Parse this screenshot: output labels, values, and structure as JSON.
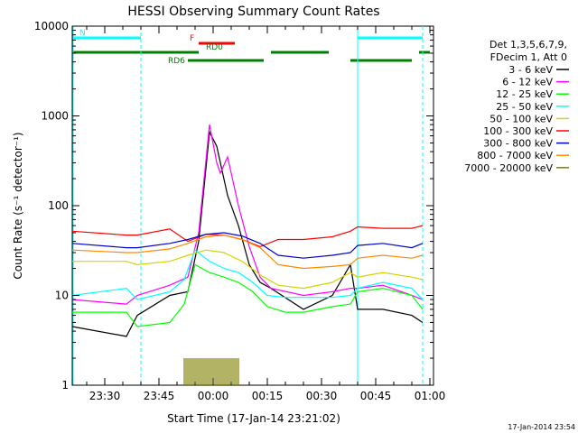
{
  "chart_data": {
    "type": "line",
    "title": "HESSI Observing Summary Count Rates",
    "xlabel": "Start Time (17-Jan-14 23:21:02)",
    "ylabel": "Count Rate (s⁻¹ detector⁻¹)",
    "y_scale": "log",
    "ylim": [
      1,
      10000
    ],
    "xlim": [
      "23:21",
      "01:01"
    ],
    "x_tick_labels": [
      "23:30",
      "23:45",
      "00:00",
      "00:15",
      "00:30",
      "00:45",
      "01:00"
    ],
    "y_tick_labels": [
      "1",
      "10",
      "100",
      "1000",
      "10000"
    ],
    "grid": false,
    "legend_position": "right",
    "legend_header": [
      "Det 1,3,5,6,7,9,",
      "FDecim 1, Att 0"
    ],
    "date_stamp": "17-Jan-2014 23:54",
    "series": [
      {
        "name": "3 - 6 keV",
        "color": "#000000",
        "x": [
          "23:21",
          "23:36",
          "23:39",
          "23:48",
          "23:53",
          "23:56",
          "23:59",
          "00:01",
          "00:04",
          "00:07",
          "00:10",
          "00:13",
          "00:16",
          "00:25",
          "00:33",
          "00:38",
          "00:40",
          "00:47",
          "00:55",
          "00:58"
        ],
        "values": [
          4.5,
          3.5,
          6,
          10,
          11,
          40,
          660,
          460,
          130,
          60,
          22,
          14,
          12,
          7,
          10,
          22,
          7,
          7,
          6,
          5
        ]
      },
      {
        "name": "6 - 12 keV",
        "color": "#ff00ff",
        "x": [
          "23:21",
          "23:36",
          "23:39",
          "23:48",
          "23:53",
          "23:56",
          "23:59",
          "00:01",
          "00:02",
          "00:04",
          "00:07",
          "00:10",
          "00:13",
          "00:16",
          "00:25",
          "00:33",
          "00:38",
          "00:40",
          "00:47",
          "00:55",
          "00:58"
        ],
        "values": [
          9,
          8,
          10,
          13,
          16,
          50,
          800,
          300,
          230,
          350,
          100,
          35,
          16,
          12,
          10,
          11,
          12,
          12,
          13,
          10,
          9
        ]
      },
      {
        "name": "12 - 25 keV",
        "color": "#00ff00",
        "x": [
          "23:21",
          "23:36",
          "23:39",
          "23:48",
          "23:52",
          "23:55",
          "23:59",
          "00:03",
          "00:07",
          "00:11",
          "00:15",
          "00:20",
          "00:25",
          "00:33",
          "00:38",
          "00:40",
          "00:47",
          "00:55",
          "00:58"
        ],
        "values": [
          6.5,
          6.5,
          4.5,
          5,
          8,
          22,
          18,
          16,
          14,
          11,
          7.5,
          6.5,
          6.5,
          7.5,
          8,
          11,
          12,
          10,
          7
        ]
      },
      {
        "name": "25 - 50 keV",
        "color": "#00ffff",
        "x": [
          "23:21",
          "23:36",
          "23:39",
          "23:48",
          "23:52",
          "23:55",
          "23:59",
          "00:03",
          "00:07",
          "00:11",
          "00:15",
          "00:20",
          "00:25",
          "00:33",
          "00:38",
          "00:40",
          "00:47",
          "00:55",
          "00:58"
        ],
        "values": [
          10,
          12,
          9,
          11,
          15,
          32,
          24,
          20,
          18,
          14,
          10,
          9.5,
          9.5,
          9.5,
          10,
          12,
          14,
          12,
          9
        ]
      },
      {
        "name": "50 - 100 keV",
        "color": "#d4d400",
        "x": [
          "23:21",
          "23:36",
          "23:39",
          "23:48",
          "23:53",
          "23:58",
          "00:03",
          "00:08",
          "00:13",
          "00:18",
          "00:25",
          "00:33",
          "00:38",
          "00:40",
          "00:47",
          "00:55",
          "00:58"
        ],
        "values": [
          24,
          24,
          22,
          24,
          28,
          32,
          30,
          24,
          17,
          13,
          12,
          14,
          18,
          16,
          18,
          16,
          15
        ]
      },
      {
        "name": "100 - 300 keV",
        "color": "#ff0000",
        "x": [
          "23:21",
          "23:36",
          "23:39",
          "23:48",
          "23:53",
          "23:58",
          "00:03",
          "00:08",
          "00:13",
          "00:18",
          "00:25",
          "00:33",
          "00:38",
          "00:40",
          "00:47",
          "00:55",
          "00:58"
        ],
        "values": [
          52,
          47,
          47,
          55,
          40,
          48,
          47,
          42,
          35,
          42,
          42,
          45,
          52,
          58,
          56,
          56,
          60
        ]
      },
      {
        "name": "300 - 800 keV",
        "color": "#0000cc",
        "x": [
          "23:21",
          "23:36",
          "23:39",
          "23:48",
          "23:53",
          "23:58",
          "00:03",
          "00:08",
          "00:13",
          "00:18",
          "00:25",
          "00:33",
          "00:38",
          "00:40",
          "00:47",
          "00:55",
          "00:58"
        ],
        "values": [
          38,
          34,
          34,
          38,
          42,
          48,
          50,
          46,
          38,
          28,
          26,
          28,
          30,
          36,
          38,
          34,
          38
        ]
      },
      {
        "name": "800 - 7000 keV",
        "color": "#ff8800",
        "x": [
          "23:21",
          "23:36",
          "23:39",
          "23:48",
          "23:53",
          "23:58",
          "00:03",
          "00:08",
          "00:13",
          "00:18",
          "00:25",
          "00:33",
          "00:38",
          "00:40",
          "00:47",
          "00:55",
          "00:58"
        ],
        "values": [
          32,
          30,
          30,
          33,
          38,
          45,
          47,
          42,
          34,
          22,
          20,
          21,
          22,
          26,
          28,
          26,
          28
        ]
      },
      {
        "name": "7000 - 20000 keV",
        "color": "#808000",
        "x": [
          "23:52",
          "23:57",
          "00:02",
          "00:07"
        ],
        "values": [
          1.6,
          2.0,
          2.0,
          1.6
        ]
      }
    ],
    "flag_bars": [
      {
        "label": "N",
        "color": "#00ffff",
        "segments": [
          [
            "23:21",
            "23:40"
          ],
          [
            "00:40",
            "00:58"
          ]
        ]
      },
      {
        "label": "F",
        "color": "#ff0000",
        "segments": [
          [
            "23:56",
            "00:06"
          ]
        ]
      },
      {
        "label": "RD0",
        "color": "#008000",
        "segments": [
          [
            "23:21",
            "23:56"
          ],
          [
            "00:16",
            "00:32"
          ],
          [
            "00:57",
            "01:00"
          ]
        ]
      },
      {
        "label": "RD6",
        "color": "#008000",
        "segments": [
          [
            "23:53",
            "00:14"
          ],
          [
            "00:38",
            "00:55"
          ]
        ]
      }
    ]
  }
}
